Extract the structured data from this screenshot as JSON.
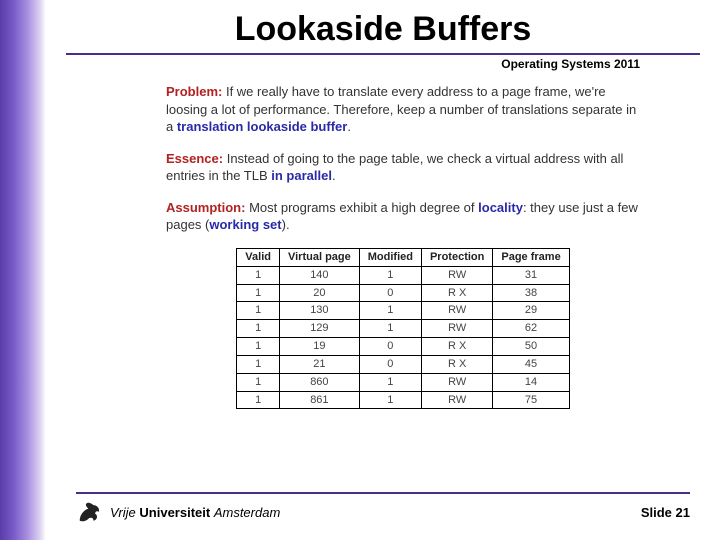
{
  "title": "Lookaside Buffers",
  "subtitle": "Operating Systems 2011",
  "sections": {
    "problem": {
      "label": "Problem:",
      "text_before": " If we really have to translate every address to a page frame, we're loosing a lot of performance. Therefore, keep a number of translations separate in a ",
      "highlight": "translation lookaside buffer",
      "text_after": "."
    },
    "essence": {
      "label": "Essence:",
      "text_before": " Instead of going to the page table, we check a virtual address with all entries in the TLB ",
      "highlight": "in parallel",
      "text_after": "."
    },
    "assumption": {
      "label": "Assumption:",
      "text_before": " Most programs exhibit a high degree of ",
      "highlight1": "locality",
      "text_mid": ": they use just a few pages (",
      "highlight2": "working set",
      "text_after": ")."
    }
  },
  "table": {
    "columns": [
      "Valid",
      "Virtual page",
      "Modified",
      "Protection",
      "Page frame"
    ],
    "rows": [
      [
        "1",
        "140",
        "1",
        "RW",
        "31"
      ],
      [
        "1",
        "20",
        "0",
        "R  X",
        "38"
      ],
      [
        "1",
        "130",
        "1",
        "RW",
        "29"
      ],
      [
        "1",
        "129",
        "1",
        "RW",
        "62"
      ],
      [
        "1",
        "19",
        "0",
        "R  X",
        "50"
      ],
      [
        "1",
        "21",
        "0",
        "R  X",
        "45"
      ],
      [
        "1",
        "860",
        "1",
        "RW",
        "14"
      ],
      [
        "1",
        "861",
        "1",
        "RW",
        "75"
      ]
    ]
  },
  "footer": {
    "uni_vrije": "Vrije",
    "uni_univ": " Universiteit ",
    "uni_amst": "Amsterdam",
    "slide_label": "Slide ",
    "slide_num": "21"
  },
  "colors": {
    "key": "#b22222",
    "highlight": "#2a2aa8",
    "rule": "#4a2c8c"
  }
}
